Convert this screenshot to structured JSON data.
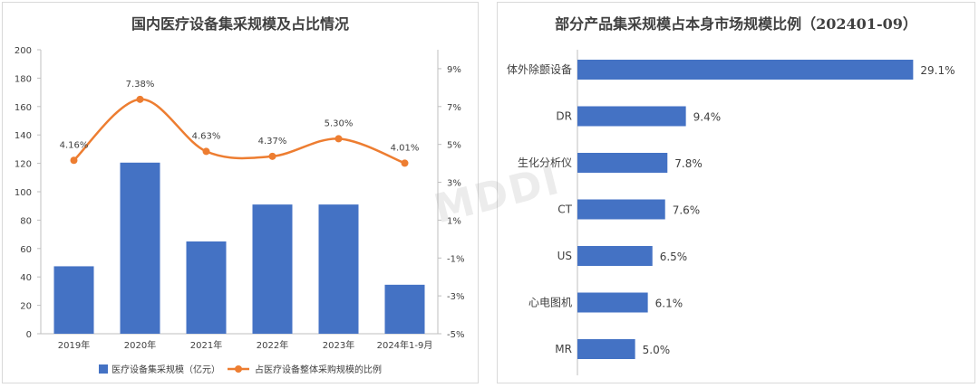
{
  "chart_data": [
    {
      "type": "bar",
      "title": "国内医疗设备集采规模及占比情况",
      "categories": [
        "2019年",
        "2020年",
        "2021年",
        "2022年",
        "2023年",
        "2024年1-9月"
      ],
      "series": [
        {
          "name": "医疗设备集采规模（亿元）",
          "type": "bar",
          "axis": "left",
          "color": "#4472C4",
          "values": [
            47.5,
            120.5,
            65.0,
            91.0,
            91.0,
            34.5
          ]
        },
        {
          "name": "占医疗设备整体采购规模的比例",
          "type": "line",
          "axis": "right",
          "color": "#ED7D31",
          "values": [
            4.16,
            7.38,
            4.63,
            4.37,
            5.3,
            4.01
          ],
          "labels": [
            "4.16%",
            "7.38%",
            "4.63%",
            "4.37%",
            "5.30%",
            "4.01%"
          ]
        }
      ],
      "ylim": [
        0,
        200
      ],
      "y_ticks": [
        "0",
        "20",
        "40",
        "60",
        "80",
        "100",
        "120",
        "140",
        "160",
        "180",
        "200"
      ],
      "y2lim": [
        -5,
        10
      ],
      "y2_ticks": [
        "-5%",
        "-3%",
        "-1%",
        "1%",
        "3%",
        "5%",
        "7%",
        "9%"
      ],
      "legend_position": "bottom"
    },
    {
      "type": "bar",
      "orientation": "horizontal",
      "title": "部分产品集采规模占本身市场规模比例（202401-09）",
      "categories": [
        "体外除颤设备",
        "DR",
        "生化分析仪",
        "CT",
        "US",
        "心电图机",
        "MR"
      ],
      "values": [
        29.1,
        9.4,
        7.8,
        7.6,
        6.5,
        6.1,
        5.0
      ],
      "labels": [
        "29.1%",
        "9.4%",
        "7.8%",
        "7.6%",
        "6.5%",
        "6.1%",
        "5.0%"
      ],
      "xlim": [
        0,
        33
      ],
      "color": "#4472C4"
    }
  ],
  "watermark": "MDDI"
}
